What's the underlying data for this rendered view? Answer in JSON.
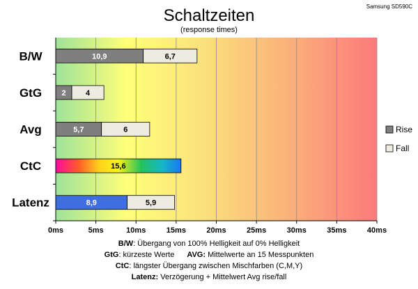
{
  "model": "Samsung SD590C",
  "chart_data": {
    "type": "bar",
    "orientation": "horizontal",
    "stacked": true,
    "title": "Schaltzeiten",
    "subtitle": "(response times)",
    "categories": [
      "B/W",
      "GtG",
      "Avg",
      "CtC",
      "Latenz"
    ],
    "series": [
      {
        "name": "Rise",
        "color": "#7f7f7f",
        "values": [
          10.9,
          2,
          5.7,
          null,
          null
        ]
      },
      {
        "name": "Fall",
        "color": "#eeece1",
        "values": [
          6.7,
          4,
          6,
          null,
          5.9
        ]
      }
    ],
    "special_bars": [
      {
        "category": "CtC",
        "value": 15.6,
        "label": "15,6",
        "fill": "rainbow-gradient"
      },
      {
        "category": "Latenz",
        "value": 8.9,
        "label": "8,9",
        "fill": "#3f6fdf"
      }
    ],
    "value_labels": {
      "Rise": [
        "10,9",
        "2",
        "5,7",
        "",
        ""
      ],
      "Fall": [
        "6,7",
        "4",
        "6",
        "",
        "5,9"
      ]
    },
    "x_ticks": [
      "0ms",
      "5ms",
      "10ms",
      "15ms",
      "20ms",
      "25ms",
      "30ms",
      "35ms",
      "40ms"
    ],
    "xlim": [
      0,
      40
    ],
    "grid": true,
    "legend_position": "right",
    "background": "green-yellow-red gradient"
  },
  "notes": {
    "bw_key": "B/W",
    "bw_text": ":  Übergang von 100% Helligkeit auf 0% Helligkeit",
    "gtg_key": "GtG",
    "gtg_text": ": kürzeste  Werte",
    "avg_key": "AVG:",
    "avg_text": " Mittelwerte  an 15 Messpunkten",
    "ctc_key": "CtC",
    "ctc_text": ": längster Übergang  zwischen Mischfarben (C,M,Y)",
    "lat_key": "Latenz:",
    "lat_text": " Verzögerung  + Mittelwert  Avg rise/fall"
  }
}
